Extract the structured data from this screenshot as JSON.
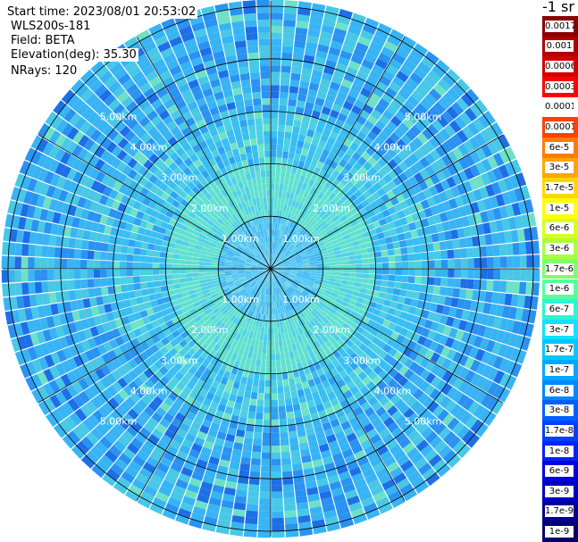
{
  "header": {
    "start_time": "Start time: 2023/08/01 20:53:02",
    "station": "WLS200s-181",
    "field": "Field: BETA",
    "elevation": "Elevation(deg): 35.30",
    "nrays": "NRays: 120"
  },
  "colorbar": {
    "unit_title": "-1 sr",
    "labels": [
      "0.0017",
      "0.001",
      "0.0006",
      "0.0003",
      "0.00017",
      "0.0001",
      "6e-5",
      "3e-5",
      "1.7e-5",
      "1e-5",
      "6e-6",
      "3e-6",
      "1.7e-6",
      "1e-6",
      "6e-7",
      "3e-7",
      "1.7e-7",
      "1e-7",
      "6e-8",
      "3e-8",
      "1.7e-8",
      "1e-8",
      "6e-9",
      "3e-9",
      "1.7e-9",
      "1e-9"
    ],
    "colors": [
      "#8b0000",
      "#b00000",
      "#d00000",
      "#ff0000",
      "#ffffff",
      "#ff4000",
      "#ff7a00",
      "#ffa500",
      "#ffd700",
      "#ffff00",
      "#d8ff1a",
      "#a8ff3e",
      "#7cff6b",
      "#55ffa0",
      "#2ef5d0",
      "#14e0ff",
      "#00c8ff",
      "#00a8ff",
      "#0088ff",
      "#0060ff",
      "#0040ff",
      "#0022ff",
      "#0000e0",
      "#0000c0",
      "#000098",
      "#000070"
    ]
  },
  "chart_data": {
    "type": "polar_ppi",
    "field": "BETA",
    "rays": 120,
    "elevation_deg": 35.3,
    "range_rings_km": [
      1.0,
      2.0,
      3.0,
      4.0,
      5.0
    ],
    "ring_labels": [
      "1.00km",
      "2.00km",
      "3.00km",
      "4.00km",
      "5.00km"
    ],
    "azimuth_spokes_deg": [
      0,
      30,
      60,
      90,
      120,
      150,
      180,
      210,
      240,
      270,
      300,
      330
    ],
    "max_range_km": 5.1,
    "colorscale_min": "1e-9",
    "colorscale_max": "0.0017",
    "dominant_value_range": [
      "1e-8",
      "1e-6"
    ]
  }
}
